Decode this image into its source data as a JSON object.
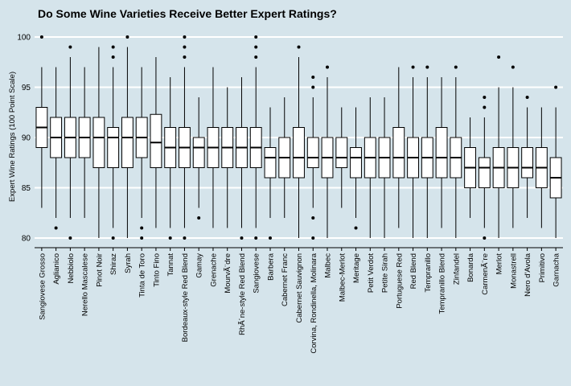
{
  "chart_data": {
    "type": "boxplot",
    "title": "Do Some Wine Varieties Receive Better Expert Ratings?",
    "xlabel": "",
    "ylabel": "Expert Wine Ratings (100 Point Scale)",
    "ylim": [
      79.2,
      101.2
    ],
    "yticks": [
      80,
      85,
      90,
      95,
      100
    ],
    "grid": true,
    "legend": "none",
    "colors": {
      "background": "#d5e4eb",
      "box_fill": "#ffffff",
      "line": "#000000",
      "grid": "#ffffff"
    },
    "categories": [
      {
        "name": "Sangiovese Grosso",
        "min": 83,
        "q1": 89,
        "median": 91,
        "q3": 93,
        "max": 97,
        "outliers": [
          100
        ]
      },
      {
        "name": "Aglianico",
        "min": 82,
        "q1": 88,
        "median": 90,
        "q3": 92,
        "max": 97,
        "outliers": [
          81
        ]
      },
      {
        "name": "Nebbiolo",
        "min": 82,
        "q1": 88,
        "median": 90,
        "q3": 92,
        "max": 98,
        "outliers": [
          80,
          99
        ]
      },
      {
        "name": "Nerello Mascalese",
        "min": 82,
        "q1": 88,
        "median": 90,
        "q3": 92,
        "max": 97,
        "outliers": []
      },
      {
        "name": "Pinot Noir",
        "min": 80,
        "q1": 87,
        "median": 90,
        "q3": 92,
        "max": 99,
        "outliers": []
      },
      {
        "name": "Shiraz",
        "min": 81,
        "q1": 87,
        "median": 90,
        "q3": 91,
        "max": 97,
        "outliers": [
          80,
          98,
          99
        ]
      },
      {
        "name": "Syrah",
        "min": 80,
        "q1": 87,
        "median": 90,
        "q3": 92,
        "max": 99,
        "outliers": [
          100
        ]
      },
      {
        "name": "Tinta de Toro",
        "min": 82,
        "q1": 88,
        "median": 90,
        "q3": 92,
        "max": 97,
        "outliers": [
          80,
          81
        ]
      },
      {
        "name": "Tinto Fino",
        "min": 81,
        "q1": 87,
        "median": 89.5,
        "q3": 92.3,
        "max": 98,
        "outliers": []
      },
      {
        "name": "Tannat",
        "min": 81,
        "q1": 87,
        "median": 89,
        "q3": 91,
        "max": 96,
        "outliers": [
          80
        ]
      },
      {
        "name": "Bordeaux-style Red Blend",
        "min": 81,
        "q1": 87,
        "median": 89,
        "q3": 91,
        "max": 97,
        "outliers": [
          80,
          98,
          99,
          100
        ]
      },
      {
        "name": "Gamay",
        "min": 83,
        "q1": 87,
        "median": 89,
        "q3": 90,
        "max": 94,
        "outliers": [
          82
        ]
      },
      {
        "name": "Grenache",
        "min": 81,
        "q1": 87,
        "median": 89,
        "q3": 91,
        "max": 97,
        "outliers": []
      },
      {
        "name": "MourvÃ¨dre",
        "min": 81,
        "q1": 87,
        "median": 89,
        "q3": 91,
        "max": 95,
        "outliers": []
      },
      {
        "name": "RhÃ´ne-style Red Blend",
        "min": 81,
        "q1": 87,
        "median": 89,
        "q3": 91,
        "max": 96,
        "outliers": [
          80
        ]
      },
      {
        "name": "Sangiovese",
        "min": 81,
        "q1": 87,
        "median": 89,
        "q3": 91,
        "max": 97,
        "outliers": [
          80,
          98,
          99,
          100
        ]
      },
      {
        "name": "Barbera",
        "min": 82,
        "q1": 86,
        "median": 88,
        "q3": 89,
        "max": 93,
        "outliers": [
          80
        ]
      },
      {
        "name": "Cabernet Franc",
        "min": 82,
        "q1": 86,
        "median": 88,
        "q3": 90,
        "max": 94,
        "outliers": []
      },
      {
        "name": "Cabernet Sauvignon",
        "min": 80,
        "q1": 86,
        "median": 88,
        "q3": 91,
        "max": 98,
        "outliers": [
          99
        ]
      },
      {
        "name": "Corvina, Rondinella, Molinara",
        "min": 83,
        "q1": 87,
        "median": 88,
        "q3": 90,
        "max": 94,
        "outliers": [
          80,
          82,
          95,
          96
        ]
      },
      {
        "name": "Malbec",
        "min": 80,
        "q1": 86,
        "median": 88,
        "q3": 90,
        "max": 96,
        "outliers": [
          97
        ]
      },
      {
        "name": "Malbec-Merlot",
        "min": 83,
        "q1": 87,
        "median": 88,
        "q3": 90,
        "max": 93,
        "outliers": []
      },
      {
        "name": "Meritage",
        "min": 82,
        "q1": 86,
        "median": 88,
        "q3": 89,
        "max": 93,
        "outliers": [
          81
        ]
      },
      {
        "name": "Petit Verdot",
        "min": 80,
        "q1": 86,
        "median": 88,
        "q3": 90,
        "max": 94,
        "outliers": []
      },
      {
        "name": "Petite Sirah",
        "min": 80,
        "q1": 86,
        "median": 88,
        "q3": 90,
        "max": 94,
        "outliers": []
      },
      {
        "name": "Portuguese Red",
        "min": 81,
        "q1": 86,
        "median": 88,
        "q3": 91,
        "max": 97,
        "outliers": []
      },
      {
        "name": "Red Blend",
        "min": 80,
        "q1": 86,
        "median": 88,
        "q3": 90,
        "max": 96,
        "outliers": [
          97
        ]
      },
      {
        "name": "Tempranillo",
        "min": 80,
        "q1": 86,
        "median": 88,
        "q3": 90,
        "max": 96,
        "outliers": [
          97
        ]
      },
      {
        "name": "Tempranillo Blend",
        "min": 81,
        "q1": 86,
        "median": 88,
        "q3": 91,
        "max": 96,
        "outliers": []
      },
      {
        "name": "Zinfandel",
        "min": 80,
        "q1": 86,
        "median": 88,
        "q3": 90,
        "max": 96,
        "outliers": [
          97
        ]
      },
      {
        "name": "Bonarda",
        "min": 82,
        "q1": 85,
        "median": 87,
        "q3": 89,
        "max": 92,
        "outliers": []
      },
      {
        "name": "CarmenÃ¨re",
        "min": 81,
        "q1": 85,
        "median": 87,
        "q3": 88,
        "max": 92,
        "outliers": [
          80,
          93,
          94
        ]
      },
      {
        "name": "Merlot",
        "min": 80,
        "q1": 85,
        "median": 87,
        "q3": 89,
        "max": 95,
        "outliers": [
          98
        ]
      },
      {
        "name": "Monastrell",
        "min": 81,
        "q1": 85,
        "median": 87,
        "q3": 89,
        "max": 95,
        "outliers": [
          97
        ]
      },
      {
        "name": "Nero d'Avola",
        "min": 82,
        "q1": 86,
        "median": 87,
        "q3": 89,
        "max": 93,
        "outliers": [
          94
        ]
      },
      {
        "name": "Primitivo",
        "min": 81,
        "q1": 85,
        "median": 87,
        "q3": 89,
        "max": 93,
        "outliers": []
      },
      {
        "name": "Garnacha",
        "min": 80,
        "q1": 84,
        "median": 86,
        "q3": 88,
        "max": 93,
        "outliers": [
          95
        ]
      }
    ]
  }
}
